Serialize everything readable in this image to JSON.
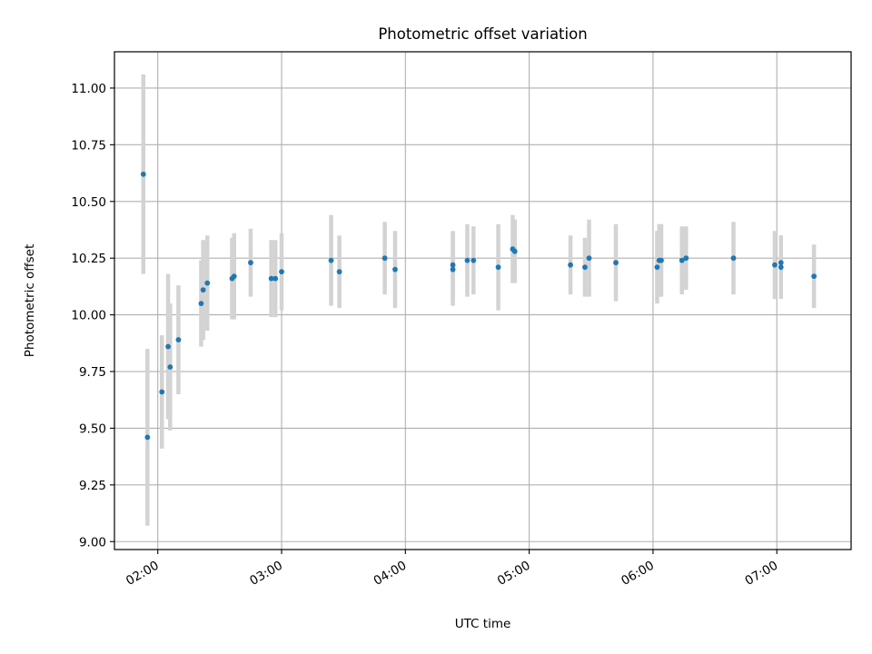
{
  "chart_data": {
    "type": "scatter",
    "title": "Photometric offset variation",
    "xlabel": "UTC time",
    "ylabel": "Photometric offset",
    "x_axis": {
      "unit": "UTC time",
      "min": "01:39",
      "max": "07:36",
      "ticks": [
        "02:00",
        "03:00",
        "04:00",
        "05:00",
        "06:00",
        "07:00"
      ]
    },
    "y_axis": {
      "min": 8.965,
      "max": 11.16,
      "ticks": [
        "9.00",
        "9.25",
        "9.50",
        "9.75",
        "10.00",
        "10.25",
        "10.50",
        "10.75",
        "11.00"
      ]
    },
    "grid": true,
    "colors": {
      "points": "#1f77b4",
      "error_bars": "#d3d3d3",
      "grid": "#b0b0b0"
    },
    "series": [
      {
        "points": [
          {
            "x": "01:53",
            "y": 10.62,
            "err": 0.44
          },
          {
            "x": "01:55",
            "y": 9.46,
            "err": 0.39
          },
          {
            "x": "02:02",
            "y": 9.66,
            "err": 0.25
          },
          {
            "x": "02:05",
            "y": 9.86,
            "err": 0.32
          },
          {
            "x": "02:06",
            "y": 9.77,
            "err": 0.28
          },
          {
            "x": "02:10",
            "y": 9.89,
            "err": 0.24
          },
          {
            "x": "02:21",
            "y": 10.05,
            "err": 0.19
          },
          {
            "x": "02:22",
            "y": 10.11,
            "err": 0.22
          },
          {
            "x": "02:24",
            "y": 10.14,
            "err": 0.21
          },
          {
            "x": "02:36",
            "y": 10.16,
            "err": 0.18
          },
          {
            "x": "02:37",
            "y": 10.17,
            "err": 0.19
          },
          {
            "x": "02:45",
            "y": 10.23,
            "err": 0.15
          },
          {
            "x": "02:55",
            "y": 10.16,
            "err": 0.17
          },
          {
            "x": "02:57",
            "y": 10.16,
            "err": 0.17
          },
          {
            "x": "03:00",
            "y": 10.19,
            "err": 0.17
          },
          {
            "x": "03:24",
            "y": 10.24,
            "err": 0.2
          },
          {
            "x": "03:28",
            "y": 10.19,
            "err": 0.16
          },
          {
            "x": "03:50",
            "y": 10.25,
            "err": 0.16
          },
          {
            "x": "03:55",
            "y": 10.2,
            "err": 0.17
          },
          {
            "x": "04:23",
            "y": 10.2,
            "err": 0.16
          },
          {
            "x": "04:23",
            "y": 10.22,
            "err": 0.15
          },
          {
            "x": "04:30",
            "y": 10.24,
            "err": 0.16
          },
          {
            "x": "04:33",
            "y": 10.24,
            "err": 0.15
          },
          {
            "x": "04:45",
            "y": 10.21,
            "err": 0.19
          },
          {
            "x": "04:52",
            "y": 10.29,
            "err": 0.15
          },
          {
            "x": "04:53",
            "y": 10.28,
            "err": 0.14
          },
          {
            "x": "05:20",
            "y": 10.22,
            "err": 0.13
          },
          {
            "x": "05:27",
            "y": 10.21,
            "err": 0.13
          },
          {
            "x": "05:29",
            "y": 10.25,
            "err": 0.17
          },
          {
            "x": "05:42",
            "y": 10.23,
            "err": 0.17
          },
          {
            "x": "06:02",
            "y": 10.21,
            "err": 0.16
          },
          {
            "x": "06:03",
            "y": 10.24,
            "err": 0.16
          },
          {
            "x": "06:04",
            "y": 10.24,
            "err": 0.16
          },
          {
            "x": "06:14",
            "y": 10.24,
            "err": 0.15
          },
          {
            "x": "06:16",
            "y": 10.25,
            "err": 0.14
          },
          {
            "x": "06:39",
            "y": 10.25,
            "err": 0.16
          },
          {
            "x": "06:59",
            "y": 10.22,
            "err": 0.15
          },
          {
            "x": "07:02",
            "y": 10.23,
            "err": 0.12
          },
          {
            "x": "07:02",
            "y": 10.21,
            "err": 0.14
          },
          {
            "x": "07:18",
            "y": 10.17,
            "err": 0.14
          }
        ]
      }
    ]
  }
}
